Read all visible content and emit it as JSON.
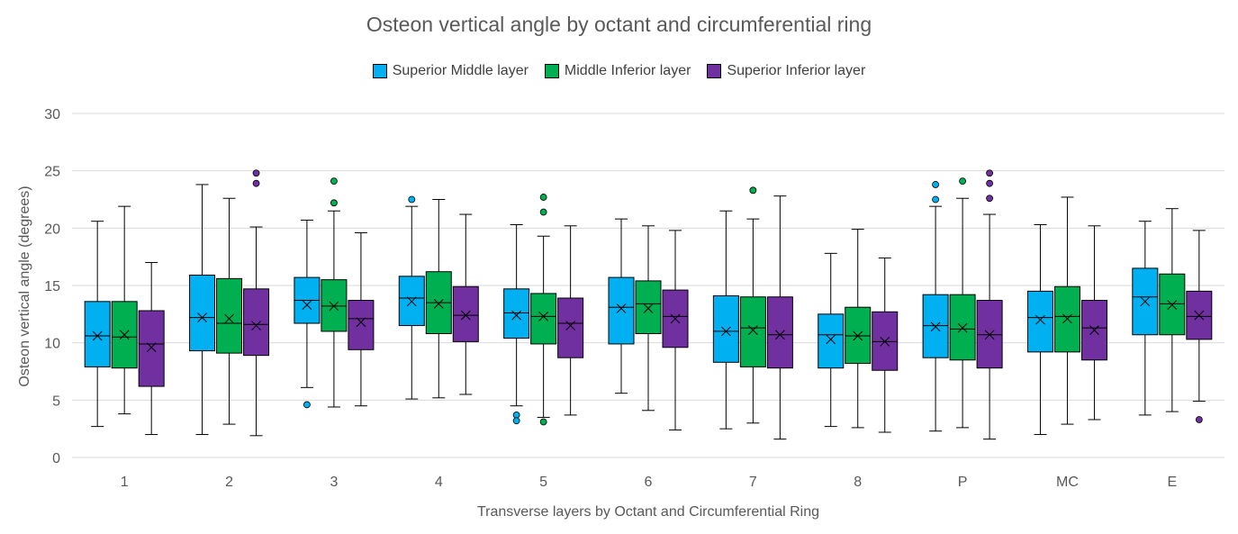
{
  "chart_data": {
    "type": "box",
    "title": "Osteon vertical angle by octant and circumferential ring",
    "xlabel": "Transverse layers by Octant and Circumferential Ring",
    "ylabel": "Osteon vertical angle (degrees)",
    "ylim": [
      0,
      30
    ],
    "yticks": [
      "0",
      "5",
      "10",
      "15",
      "20",
      "25",
      "30"
    ],
    "categories": [
      "1",
      "2",
      "3",
      "4",
      "5",
      "6",
      "7",
      "8",
      "P",
      "MC",
      "E"
    ],
    "legend_position": "top",
    "series": [
      {
        "name": "Superior Middle layer",
        "color": "#00B0F0",
        "boxes": [
          {
            "min": 2.7,
            "q1": 7.9,
            "median": 10.6,
            "q3": 13.6,
            "max": 20.6,
            "mean": 10.6,
            "outliers": []
          },
          {
            "min": 2.0,
            "q1": 9.3,
            "median": 12.2,
            "q3": 15.9,
            "max": 23.8,
            "mean": 12.2,
            "outliers": []
          },
          {
            "min": 6.1,
            "q1": 11.7,
            "median": 13.7,
            "q3": 15.7,
            "max": 20.7,
            "mean": 13.3,
            "outliers": [
              4.6
            ]
          },
          {
            "min": 5.1,
            "q1": 11.5,
            "median": 13.9,
            "q3": 15.8,
            "max": 21.9,
            "mean": 13.6,
            "outliers": [
              22.5
            ]
          },
          {
            "min": 4.5,
            "q1": 10.4,
            "median": 12.6,
            "q3": 14.7,
            "max": 20.3,
            "mean": 12.4,
            "outliers": [
              3.7,
              3.2
            ]
          },
          {
            "min": 5.6,
            "q1": 9.9,
            "median": 13.1,
            "q3": 15.7,
            "max": 20.8,
            "mean": 13.0,
            "outliers": []
          },
          {
            "min": 2.5,
            "q1": 8.3,
            "median": 11.0,
            "q3": 14.1,
            "max": 21.5,
            "mean": 11.0,
            "outliers": []
          },
          {
            "min": 2.7,
            "q1": 7.8,
            "median": 10.7,
            "q3": 12.5,
            "max": 17.8,
            "mean": 10.3,
            "outliers": []
          },
          {
            "min": 2.3,
            "q1": 8.7,
            "median": 11.5,
            "q3": 14.2,
            "max": 21.9,
            "mean": 11.4,
            "outliers": [
              22.5,
              23.8
            ]
          },
          {
            "min": 2.0,
            "q1": 9.2,
            "median": 12.2,
            "q3": 14.5,
            "max": 20.3,
            "mean": 12.0,
            "outliers": []
          },
          {
            "min": 3.7,
            "q1": 10.7,
            "median": 14.0,
            "q3": 16.5,
            "max": 20.6,
            "mean": 13.6,
            "outliers": []
          }
        ]
      },
      {
        "name": "Middle Inferior layer",
        "color": "#00B050",
        "boxes": [
          {
            "min": 3.8,
            "q1": 7.8,
            "median": 10.5,
            "q3": 13.6,
            "max": 21.9,
            "mean": 10.7,
            "outliers": []
          },
          {
            "min": 2.9,
            "q1": 9.1,
            "median": 11.7,
            "q3": 15.6,
            "max": 22.6,
            "mean": 12.1,
            "outliers": []
          },
          {
            "min": 4.4,
            "q1": 11.0,
            "median": 13.2,
            "q3": 15.5,
            "max": 21.5,
            "mean": 13.2,
            "outliers": [
              22.2,
              24.1
            ]
          },
          {
            "min": 5.2,
            "q1": 10.8,
            "median": 13.5,
            "q3": 16.2,
            "max": 22.5,
            "mean": 13.4,
            "outliers": []
          },
          {
            "min": 3.5,
            "q1": 9.9,
            "median": 12.3,
            "q3": 14.3,
            "max": 19.3,
            "mean": 12.3,
            "outliers": [
              3.1,
              21.4,
              22.7
            ]
          },
          {
            "min": 4.1,
            "q1": 10.8,
            "median": 13.4,
            "q3": 15.4,
            "max": 20.2,
            "mean": 13.0,
            "outliers": []
          },
          {
            "min": 3.0,
            "q1": 7.9,
            "median": 11.3,
            "q3": 14.0,
            "max": 20.8,
            "mean": 11.1,
            "outliers": [
              23.3
            ]
          },
          {
            "min": 2.6,
            "q1": 8.2,
            "median": 10.6,
            "q3": 13.1,
            "max": 19.9,
            "mean": 10.6,
            "outliers": []
          },
          {
            "min": 2.6,
            "q1": 8.5,
            "median": 11.2,
            "q3": 14.2,
            "max": 22.6,
            "mean": 11.3,
            "outliers": [
              24.1
            ]
          },
          {
            "min": 2.9,
            "q1": 9.2,
            "median": 12.3,
            "q3": 14.9,
            "max": 22.7,
            "mean": 12.1,
            "outliers": []
          },
          {
            "min": 4.0,
            "q1": 10.7,
            "median": 13.4,
            "q3": 16.0,
            "max": 21.7,
            "mean": 13.3,
            "outliers": []
          }
        ]
      },
      {
        "name": "Superior Inferior layer",
        "color": "#7030A0",
        "boxes": [
          {
            "min": 2.0,
            "q1": 6.2,
            "median": 9.9,
            "q3": 12.8,
            "max": 17.0,
            "mean": 9.6,
            "outliers": []
          },
          {
            "min": 1.9,
            "q1": 8.9,
            "median": 11.6,
            "q3": 14.7,
            "max": 20.1,
            "mean": 11.5,
            "outliers": [
              23.9,
              24.8
            ]
          },
          {
            "min": 4.5,
            "q1": 9.4,
            "median": 12.1,
            "q3": 13.7,
            "max": 19.6,
            "mean": 11.8,
            "outliers": []
          },
          {
            "min": 5.5,
            "q1": 10.1,
            "median": 12.4,
            "q3": 14.9,
            "max": 21.2,
            "mean": 12.4,
            "outliers": []
          },
          {
            "min": 3.7,
            "q1": 8.7,
            "median": 11.7,
            "q3": 13.9,
            "max": 20.2,
            "mean": 11.5,
            "outliers": []
          },
          {
            "min": 2.4,
            "q1": 9.6,
            "median": 12.3,
            "q3": 14.6,
            "max": 19.8,
            "mean": 12.1,
            "outliers": []
          },
          {
            "min": 1.6,
            "q1": 7.8,
            "median": 10.7,
            "q3": 14.0,
            "max": 22.8,
            "mean": 10.7,
            "outliers": []
          },
          {
            "min": 2.2,
            "q1": 7.6,
            "median": 10.1,
            "q3": 12.7,
            "max": 17.4,
            "mean": 10.1,
            "outliers": []
          },
          {
            "min": 1.6,
            "q1": 7.8,
            "median": 10.7,
            "q3": 13.7,
            "max": 21.2,
            "mean": 10.7,
            "outliers": [
              22.6,
              23.9,
              24.8
            ]
          },
          {
            "min": 3.3,
            "q1": 8.5,
            "median": 11.3,
            "q3": 13.7,
            "max": 20.2,
            "mean": 11.1,
            "outliers": []
          },
          {
            "min": 4.9,
            "q1": 10.3,
            "median": 12.3,
            "q3": 14.5,
            "max": 19.8,
            "mean": 12.4,
            "outliers": [
              3.3
            ]
          }
        ]
      }
    ]
  }
}
